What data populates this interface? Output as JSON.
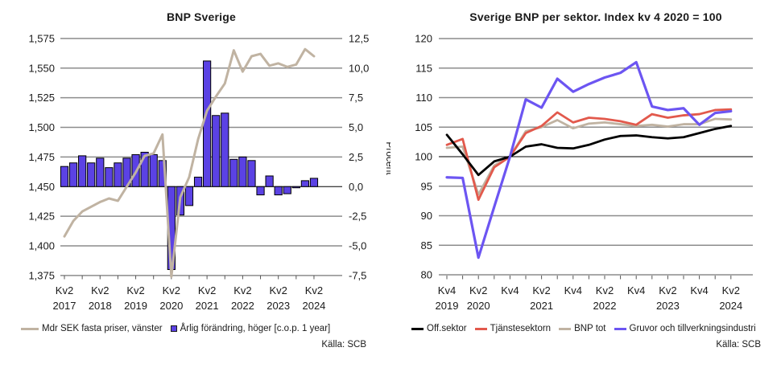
{
  "chart_data": [
    {
      "type": "bar+line",
      "title": "BNP Sverige",
      "source": "Källa: SCB",
      "x_categories": [
        "Kv2 2017",
        "Kv3 2017",
        "Kv4 2017",
        "Kv1 2018",
        "Kv2 2018",
        "Kv3 2018",
        "Kv4 2018",
        "Kv1 2019",
        "Kv2 2019",
        "Kv3 2019",
        "Kv4 2019",
        "Kv1 2020",
        "Kv2 2020",
        "Kv3 2020",
        "Kv4 2020",
        "Kv1 2021",
        "Kv2 2021",
        "Kv3 2021",
        "Kv4 2021",
        "Kv1 2022",
        "Kv2 2022",
        "Kv3 2022",
        "Kv4 2022",
        "Kv1 2023",
        "Kv2 2023",
        "Kv3 2023",
        "Kv4 2023",
        "Kv1 2024",
        "Kv2 2024"
      ],
      "series": [
        {
          "name": "Mdr SEK fasta priser, vänster",
          "type": "line",
          "axis": "left",
          "color": "#c0b3a2",
          "values": [
            1408,
            1421,
            1429,
            1433,
            1437,
            1440,
            1438,
            1450,
            1462,
            1476,
            1478,
            1494,
            1374,
            1441,
            1458,
            1490,
            1514,
            1526,
            1537,
            1565,
            1547,
            1560,
            1562,
            1552,
            1554,
            1551,
            1553,
            1566,
            1560
          ]
        },
        {
          "name": "Årlig förändring, höger [c.o.p. 1 year]",
          "type": "bar",
          "axis": "right",
          "color": "#5b42e4",
          "values": [
            1.7,
            2.0,
            2.6,
            2.0,
            2.4,
            1.6,
            2.0,
            2.4,
            2.7,
            2.9,
            2.7,
            2.2,
            -7.0,
            -2.4,
            -1.6,
            0.8,
            10.6,
            6.0,
            6.2,
            2.3,
            2.5,
            2.2,
            -0.7,
            0.9,
            -0.7,
            -0.6,
            -0.1,
            0.5,
            0.7
          ]
        }
      ],
      "left_axis": {
        "min": 1375,
        "max": 1575,
        "ticks": [
          "1,575",
          "1,550",
          "1,525",
          "1,500",
          "1,475",
          "1,450",
          "1,425",
          "1,400",
          "1,375"
        ],
        "values": [
          1575,
          1550,
          1525,
          1500,
          1475,
          1450,
          1425,
          1400,
          1375
        ]
      },
      "right_axis": {
        "label": "Procent",
        "min": -7.5,
        "max": 12.5,
        "ticks": [
          "12,5",
          "10,0",
          "7,5",
          "5,0",
          "2,5",
          "0,0",
          "-2,5",
          "-5,0",
          "-7,5"
        ],
        "values": [
          12.5,
          10,
          7.5,
          5,
          2.5,
          0,
          -2.5,
          -5,
          -7.5
        ]
      },
      "x_axis": {
        "labels": [
          {
            "q": "Kv2",
            "year": "2017",
            "i": 0
          },
          {
            "q": "Kv2",
            "year": "2018",
            "i": 4
          },
          {
            "q": "Kv2",
            "year": "2019",
            "i": 8
          },
          {
            "q": "Kv2",
            "year": "2020",
            "i": 12
          },
          {
            "q": "Kv2",
            "year": "2021",
            "i": 16
          },
          {
            "q": "Kv2",
            "year": "2022",
            "i": 20
          },
          {
            "q": "Kv2",
            "year": "2023",
            "i": 24
          },
          {
            "q": "Kv2",
            "year": "2024",
            "i": 28
          }
        ]
      }
    },
    {
      "type": "line",
      "title": "Sverige BNP per sektor. Index kv 4 2020 = 100",
      "source": "Källa: SCB",
      "x_categories": [
        "Kv4 2019",
        "Kv1 2020",
        "Kv2 2020",
        "Kv3 2020",
        "Kv4 2020",
        "Kv1 2021",
        "Kv2 2021",
        "Kv3 2021",
        "Kv4 2021",
        "Kv1 2022",
        "Kv2 2022",
        "Kv3 2022",
        "Kv4 2022",
        "Kv1 2023",
        "Kv2 2023",
        "Kv3 2023",
        "Kv4 2023",
        "Kv1 2024",
        "Kv2 2024"
      ],
      "series": [
        {
          "name": "Off.sektor",
          "color": "#000000",
          "values": [
            103.7,
            100.4,
            96.9,
            99.2,
            100,
            101.7,
            102.1,
            101.5,
            101.4,
            102.0,
            102.9,
            103.5,
            103.6,
            103.3,
            103.1,
            103.3,
            104.0,
            104.7,
            105.2
          ]
        },
        {
          "name": "Tjänstesektorn",
          "color": "#e2594c",
          "values": [
            102.0,
            103.0,
            92.7,
            98.2,
            100,
            104.0,
            105.2,
            107.5,
            105.8,
            106.6,
            106.4,
            106.0,
            105.4,
            107.2,
            106.6,
            107.0,
            107.2,
            107.9,
            108.0
          ]
        },
        {
          "name": "BNP tot",
          "color": "#c0b3a2",
          "values": [
            101.5,
            101.7,
            93.6,
            98.5,
            100,
            104.3,
            105.0,
            106.2,
            104.8,
            105.6,
            105.8,
            105.5,
            105.2,
            105.4,
            105.1,
            105.5,
            105.5,
            106.4,
            106.3
          ]
        },
        {
          "name": "Gruvor och tillverkningsindustri",
          "color": "#6c55f2",
          "values": [
            96.5,
            96.4,
            82.9,
            91.5,
            100,
            109.7,
            108.3,
            113.2,
            111.0,
            112.3,
            113.4,
            114.2,
            116.0,
            108.5,
            107.9,
            108.2,
            105.4,
            107.4,
            107.7
          ]
        }
      ],
      "y_axis": {
        "min": 80,
        "max": 120,
        "ticks": [
          "120",
          "115",
          "110",
          "105",
          "100",
          "95",
          "90",
          "85",
          "80"
        ],
        "values": [
          120,
          115,
          110,
          105,
          100,
          95,
          90,
          85,
          80
        ]
      },
      "x_axis": {
        "labels": [
          {
            "q": "Kv4",
            "year": "2019",
            "i": 0
          },
          {
            "q": "Kv2",
            "year": "2020",
            "i": 2
          },
          {
            "q": "Kv4",
            "year": "",
            "i": 4
          },
          {
            "q": "Kv2",
            "year": "2021",
            "i": 6
          },
          {
            "q": "Kv4",
            "year": "",
            "i": 8
          },
          {
            "q": "Kv2",
            "year": "2022",
            "i": 10
          },
          {
            "q": "Kv4",
            "year": "",
            "i": 12
          },
          {
            "q": "Kv2",
            "year": "2023",
            "i": 14
          },
          {
            "q": "Kv4",
            "year": "",
            "i": 16
          },
          {
            "q": "Kv2",
            "year": "2024",
            "i": 18
          }
        ]
      }
    }
  ],
  "colors": {
    "grid": "#8c8c8c",
    "zero_line": "#000000",
    "text": "#1a1a1a",
    "background": "#ffffff"
  }
}
